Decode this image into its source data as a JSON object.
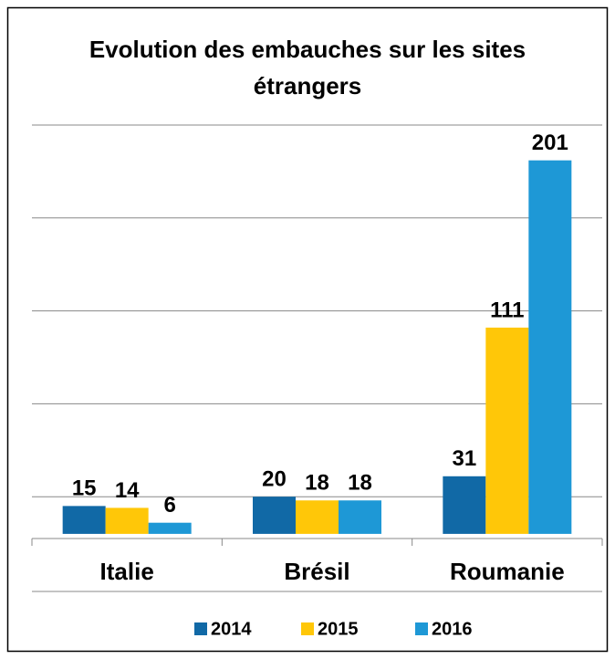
{
  "chart_data": {
    "type": "bar",
    "title": "Evolution des embauches sur les sites étrangers",
    "categories": [
      "Italie",
      "Brésil",
      "Roumanie"
    ],
    "series": [
      {
        "name": "2014",
        "color": "#1169a6",
        "values": [
          15,
          20,
          31
        ]
      },
      {
        "name": "2015",
        "color": "#ffc708",
        "values": [
          14,
          18,
          111
        ]
      },
      {
        "name": "2016",
        "color": "#1e98d6",
        "values": [
          6,
          18,
          201
        ]
      }
    ],
    "ylim": [
      -2.5,
      220
    ],
    "yticks": [
      20,
      70,
      120,
      170,
      220
    ],
    "grid": true,
    "legend": "bottom"
  }
}
